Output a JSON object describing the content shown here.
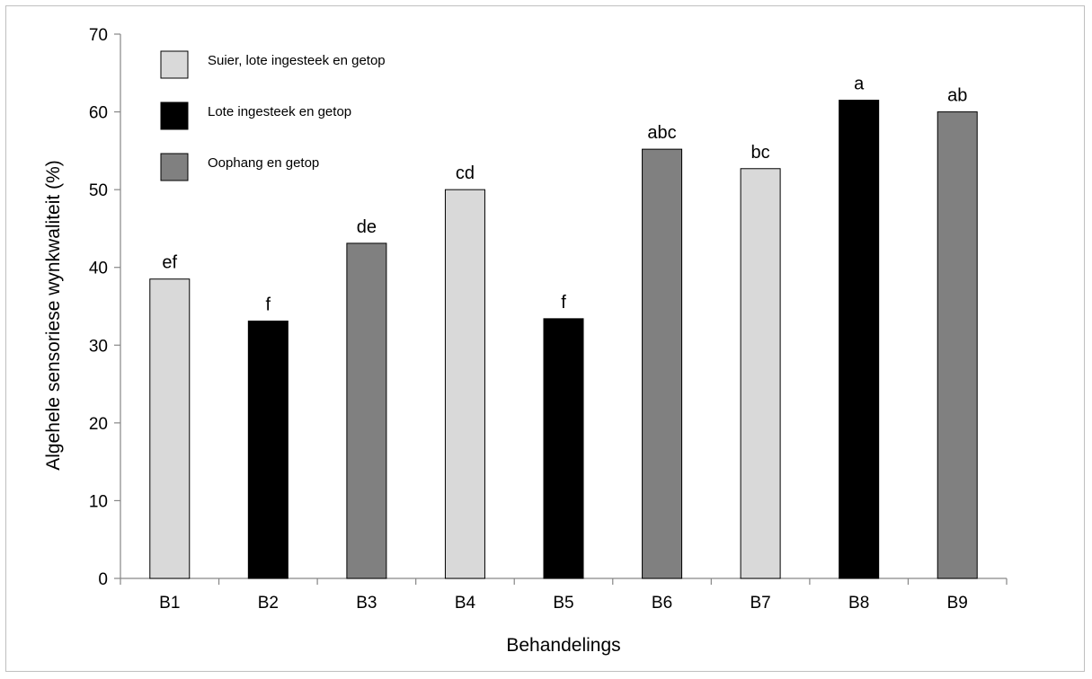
{
  "chart_data": {
    "type": "bar",
    "title": "",
    "xlabel": "Behandelings",
    "ylabel": "Algehele sensoriese wynkwaliteit (%)",
    "ylim": [
      0,
      70
    ],
    "yticks": [
      0,
      10,
      20,
      30,
      40,
      50,
      60,
      70
    ],
    "grid": false,
    "legend_position": "top-left",
    "categories": [
      "B1",
      "B2",
      "B3",
      "B4",
      "B5",
      "B6",
      "B7",
      "B8",
      "B9"
    ],
    "values": [
      38.5,
      33.1,
      43.1,
      50.0,
      33.4,
      55.2,
      52.7,
      61.5,
      60.0
    ],
    "significance_labels": [
      "ef",
      "f",
      "de",
      "cd",
      "f",
      "abc",
      "bc",
      "a",
      "ab"
    ],
    "bar_groups": [
      0,
      1,
      2,
      0,
      1,
      2,
      0,
      1,
      2
    ],
    "legend": [
      {
        "label": "Suier, lote ingesteek en getop",
        "color": "#d9d9d9"
      },
      {
        "label": "Lote ingesteek en getop",
        "color": "#000000"
      },
      {
        "label": "Oophang en getop",
        "color": "#808080"
      }
    ]
  }
}
